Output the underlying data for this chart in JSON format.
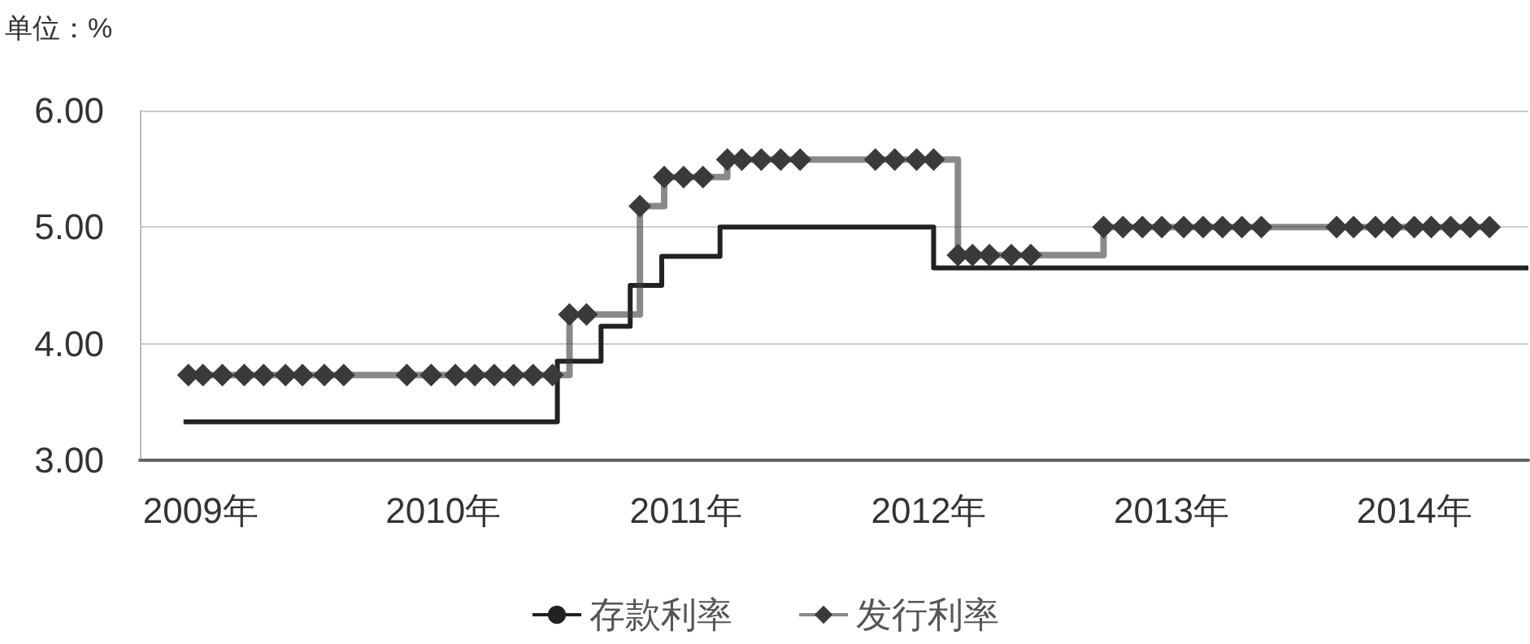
{
  "chart_data": {
    "type": "step",
    "ylabel": "单位：%",
    "xlim": [
      2008.75,
      2014.47
    ],
    "xticks": [
      {
        "value": 2009,
        "label": "2009年"
      },
      {
        "value": 2010,
        "label": "2010年"
      },
      {
        "value": 2011,
        "label": "2011年"
      },
      {
        "value": 2012,
        "label": "2012年"
      },
      {
        "value": 2013,
        "label": "2013年"
      },
      {
        "value": 2014,
        "label": "2014年"
      }
    ],
    "ylim": [
      3,
      6
    ],
    "yticks": [
      {
        "value": 3,
        "label": "3.00"
      },
      {
        "value": 4,
        "label": "4.00"
      },
      {
        "value": 5,
        "label": "5.00"
      },
      {
        "value": 6,
        "label": "6.00"
      }
    ],
    "grid": "y",
    "legend": "bottom",
    "series": [
      {
        "name": "存款利率",
        "color": "#222222",
        "marker": "none",
        "x": [
          2008.93,
          2010.47,
          2010.65,
          2010.77,
          2010.9,
          2011.14,
          2012.02,
          2014.47
        ],
        "values": [
          3.33,
          3.85,
          4.15,
          4.5,
          4.75,
          5.0,
          4.65,
          4.65
        ]
      },
      {
        "name": "发行利率",
        "color": "#3a3a3a",
        "marker": "diamond",
        "x": [
          2008.95,
          2009.01,
          2009.09,
          2009.18,
          2009.26,
          2009.35,
          2009.42,
          2009.51,
          2009.59,
          2009.85,
          2009.95,
          2010.05,
          2010.13,
          2010.21,
          2010.29,
          2010.37,
          2010.45,
          2010.52,
          2010.59,
          2010.81,
          2010.91,
          2010.99,
          2011.07,
          2011.17,
          2011.23,
          2011.31,
          2011.39,
          2011.47,
          2011.78,
          2011.86,
          2011.95,
          2012.02,
          2012.12,
          2012.18,
          2012.25,
          2012.34,
          2012.42,
          2012.72,
          2012.8,
          2012.88,
          2012.96,
          2013.05,
          2013.13,
          2013.21,
          2013.29,
          2013.37,
          2013.68,
          2013.75,
          2013.84,
          2013.91,
          2014.0,
          2014.07,
          2014.15,
          2014.23,
          2014.31
        ],
        "values": [
          3.73,
          3.73,
          3.73,
          3.73,
          3.73,
          3.73,
          3.73,
          3.73,
          3.73,
          3.73,
          3.73,
          3.73,
          3.73,
          3.73,
          3.73,
          3.73,
          3.73,
          4.25,
          4.25,
          5.18,
          5.43,
          5.43,
          5.43,
          5.58,
          5.58,
          5.58,
          5.58,
          5.58,
          5.58,
          5.58,
          5.58,
          5.58,
          4.76,
          4.76,
          4.76,
          4.76,
          4.76,
          5.0,
          5.0,
          5.0,
          5.0,
          5.0,
          5.0,
          5.0,
          5.0,
          5.0,
          5.0,
          5.0,
          5.0,
          5.0,
          5.0,
          5.0,
          5.0,
          5.0,
          5.0
        ]
      }
    ]
  }
}
